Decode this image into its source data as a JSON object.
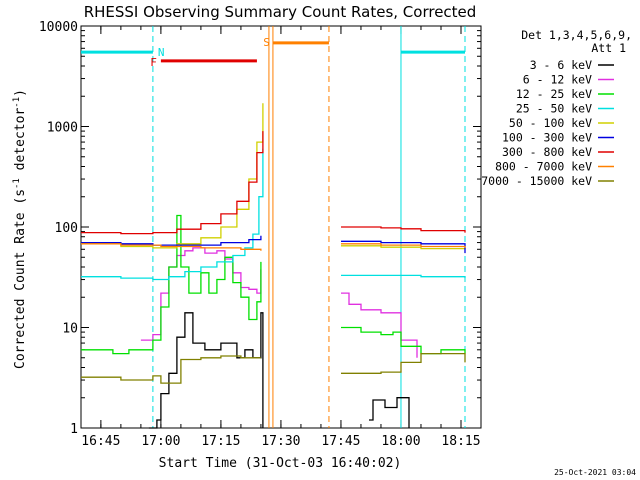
{
  "chart_data": {
    "type": "line",
    "title": "RHESSI Observing Summary Count Rates, Corrected",
    "xlabel": "Start Time (31-Oct-03 16:40:02)",
    "ylabel_prefix": "Corrected Count Rate (s",
    "ylabel_sup": "-1",
    "ylabel_suffix": " detector",
    "ylabel_end": ")",
    "footer_date": "25-Oct-2021 03:04",
    "y_scale": "log",
    "ylim": [
      1,
      10000
    ],
    "xlim": [
      "16:40:02",
      "18:20:00"
    ],
    "x_ticks": [
      "16:45",
      "17:00",
      "17:15",
      "17:30",
      "17:45",
      "18:00",
      "18:15"
    ],
    "y_ticks": [
      "1",
      "10",
      "100",
      "1000",
      "10000"
    ],
    "legend_title_1": "Det 1,3,4,5,6,9,",
    "legend_title_2": "Att 1",
    "legend_placement": "right",
    "series": [
      {
        "name": "3 - 6 keV",
        "color": "#000000",
        "segments": [
          [
            [
              "16:57:00",
              1
            ],
            [
              "16:59:00",
              1.2
            ],
            [
              "17:00:00",
              2.2
            ],
            [
              "17:02:00",
              3.5
            ],
            [
              "17:04:00",
              8
            ],
            [
              "17:06:00",
              14
            ],
            [
              "17:08:00",
              7
            ],
            [
              "17:11:00",
              6
            ],
            [
              "17:15:00",
              7
            ],
            [
              "17:19:00",
              5
            ],
            [
              "17:21:00",
              6
            ],
            [
              "17:23:00",
              5
            ],
            [
              "17:25:00",
              14
            ],
            [
              "17:25:30",
              1
            ]
          ],
          [
            [
              "17:52:00",
              1.2
            ],
            [
              "17:53:00",
              1.9
            ],
            [
              "17:56:00",
              1.6
            ],
            [
              "17:59:00",
              2.0
            ],
            [
              "18:02:00",
              1
            ]
          ]
        ]
      },
      {
        "name": "6 - 12 keV",
        "color": "#e030e0",
        "segments": [
          [
            [
              "16:55:00",
              7.5
            ],
            [
              "16:58:00",
              8.5
            ],
            [
              "17:00:00",
              22
            ],
            [
              "17:02:00",
              40
            ],
            [
              "17:04:00",
              52
            ],
            [
              "17:06:00",
              58
            ],
            [
              "17:08:00",
              62
            ],
            [
              "17:11:00",
              55
            ],
            [
              "17:14:00",
              58
            ],
            [
              "17:16:00",
              48
            ],
            [
              "17:18:00",
              35
            ],
            [
              "17:20:00",
              25
            ],
            [
              "17:22:00",
              24
            ],
            [
              "17:24:00",
              22
            ],
            [
              "17:25:00",
              38
            ]
          ],
          [
            [
              "17:45:00",
              22
            ],
            [
              "17:47:00",
              17
            ],
            [
              "17:50:00",
              15
            ],
            [
              "17:55:00",
              14
            ],
            [
              "17:58:00",
              14
            ],
            [
              "18:00:00",
              7.5
            ],
            [
              "18:04:00",
              5
            ]
          ]
        ]
      },
      {
        "name": "12 - 25 keV",
        "color": "#00e000",
        "segments": [
          [
            [
              "16:40:02",
              6
            ],
            [
              "16:48:00",
              5.5
            ],
            [
              "16:52:00",
              6
            ],
            [
              "16:55:00",
              6
            ],
            [
              "16:58:00",
              7.5
            ],
            [
              "17:00:00",
              16
            ],
            [
              "17:02:00",
              40
            ],
            [
              "17:04:00",
              130
            ],
            [
              "17:05:00",
              40
            ],
            [
              "17:07:00",
              22
            ],
            [
              "17:10:00",
              35
            ],
            [
              "17:12:00",
              22
            ],
            [
              "17:14:00",
              30
            ],
            [
              "17:16:00",
              50
            ],
            [
              "17:18:00",
              28
            ],
            [
              "17:20:00",
              20
            ],
            [
              "17:22:00",
              12
            ],
            [
              "17:24:00",
              18
            ],
            [
              "17:25:00",
              45
            ]
          ],
          [
            [
              "17:45:00",
              10
            ],
            [
              "17:50:00",
              9
            ],
            [
              "17:55:00",
              8.5
            ],
            [
              "17:58:00",
              9
            ],
            [
              "18:00:00",
              6.5
            ],
            [
              "18:05:00",
              5.5
            ],
            [
              "18:10:00",
              6
            ],
            [
              "18:16:00",
              5.5
            ]
          ]
        ]
      },
      {
        "name": "25 - 50 keV",
        "color": "#00e0e0",
        "segments": [
          [
            [
              "16:40:02",
              32
            ],
            [
              "16:50:00",
              31
            ],
            [
              "16:58:00",
              30
            ],
            [
              "17:02:00",
              32
            ],
            [
              "17:06:00",
              36
            ],
            [
              "17:10:00",
              40
            ],
            [
              "17:14:00",
              45
            ],
            [
              "17:18:00",
              52
            ],
            [
              "17:21:00",
              62
            ],
            [
              "17:23:00",
              85
            ],
            [
              "17:24:30",
              200
            ],
            [
              "17:25:30",
              600
            ]
          ],
          [
            [
              "17:45:00",
              33
            ],
            [
              "17:55:00",
              33
            ],
            [
              "18:05:00",
              32
            ],
            [
              "18:16:00",
              31
            ]
          ]
        ]
      },
      {
        "name": "50 - 100 keV",
        "color": "#d0d000",
        "segments": [
          [
            [
              "16:40:02",
              68
            ],
            [
              "16:50:00",
              64
            ],
            [
              "16:58:00",
              62
            ],
            [
              "17:04:00",
              68
            ],
            [
              "17:10:00",
              78
            ],
            [
              "17:15:00",
              100
            ],
            [
              "17:19:00",
              150
            ],
            [
              "17:22:00",
              300
            ],
            [
              "17:24:00",
              700
            ],
            [
              "17:25:30",
              1700
            ]
          ],
          [
            [
              "17:45:00",
              65
            ],
            [
              "17:55:00",
              63
            ],
            [
              "18:05:00",
              61
            ],
            [
              "18:16:00",
              60
            ]
          ]
        ]
      },
      {
        "name": "100 - 300 keV",
        "color": "#0000e0",
        "segments": [
          [
            [
              "16:40:02",
              70
            ],
            [
              "16:50:00",
              68
            ],
            [
              "16:58:00",
              66
            ],
            [
              "17:06:00",
              66
            ],
            [
              "17:15:00",
              70
            ],
            [
              "17:22:00",
              75
            ],
            [
              "17:25:00",
              82
            ]
          ],
          [
            [
              "17:45:00",
              72
            ],
            [
              "17:55:00",
              70
            ],
            [
              "18:05:00",
              68
            ],
            [
              "18:16:00",
              55
            ]
          ]
        ]
      },
      {
        "name": "300 - 800 keV",
        "color": "#e00000",
        "segments": [
          [
            [
              "16:40:02",
              88
            ],
            [
              "16:50:00",
              86
            ],
            [
              "16:58:00",
              88
            ],
            [
              "17:04:00",
              95
            ],
            [
              "17:10:00",
              108
            ],
            [
              "17:15:00",
              135
            ],
            [
              "17:19:00",
              180
            ],
            [
              "17:22:00",
              280
            ],
            [
              "17:24:00",
              550
            ],
            [
              "17:25:30",
              900
            ]
          ],
          [
            [
              "17:45:00",
              100
            ],
            [
              "17:55:00",
              98
            ],
            [
              "18:00:00",
              96
            ],
            [
              "18:05:00",
              92
            ],
            [
              "18:16:00",
              88
            ]
          ]
        ]
      },
      {
        "name": "800 - 7000 keV",
        "color": "#ff8000",
        "segments": [
          [
            [
              "16:40:02",
              68
            ],
            [
              "16:50:00",
              66
            ],
            [
              "17:00:00",
              64
            ],
            [
              "17:10:00",
              62
            ],
            [
              "17:20:00",
              60
            ],
            [
              "17:25:00",
              58
            ]
          ],
          [
            [
              "17:45:00",
              68
            ],
            [
              "17:55:00",
              66
            ],
            [
              "18:05:00",
              64
            ],
            [
              "18:16:00",
              62
            ]
          ]
        ]
      },
      {
        "name": "7000 - 15000 keV",
        "color": "#808000",
        "segments": [
          [
            [
              "16:40:02",
              3.2
            ],
            [
              "16:50:00",
              3.0
            ],
            [
              "16:58:00",
              3.3
            ],
            [
              "17:00:00",
              2.8
            ],
            [
              "17:05:00",
              4.8
            ],
            [
              "17:10:00",
              5.0
            ],
            [
              "17:15:00",
              5.2
            ],
            [
              "17:20:00",
              5.0
            ],
            [
              "17:25:00",
              5.0
            ]
          ],
          [
            [
              "17:45:00",
              3.5
            ],
            [
              "17:55:00",
              3.6
            ],
            [
              "18:00:00",
              4.5
            ],
            [
              "18:05:00",
              5.5
            ],
            [
              "18:10:00",
              5.5
            ],
            [
              "18:16:00",
              4.5
            ]
          ]
        ]
      }
    ],
    "annotations": {
      "night_label": "N",
      "flare_label": "F",
      "saa_label": "S",
      "night_color": "#00e0e0",
      "flare_color": "#e00000",
      "saa_color": "#ff8000",
      "night_bars": [
        [
          "16:40:02",
          "16:58:00"
        ],
        [
          "18:00:00",
          "18:16:00"
        ]
      ],
      "night_value": 5500,
      "flare_bar": [
        "17:00:00",
        "17:24:00"
      ],
      "flare_value": 4500,
      "saa_bar": [
        "17:28:00",
        "17:42:00"
      ],
      "saa_value": 6800,
      "night_edges": [
        "16:58:00",
        "18:00:00",
        "18:16:00"
      ],
      "night_edges_dashed": [
        true,
        false,
        true
      ],
      "saa_edges": [
        "17:27:00",
        "17:28:00",
        "17:42:00"
      ],
      "saa_edges_dashed": [
        false,
        false,
        true
      ]
    }
  }
}
